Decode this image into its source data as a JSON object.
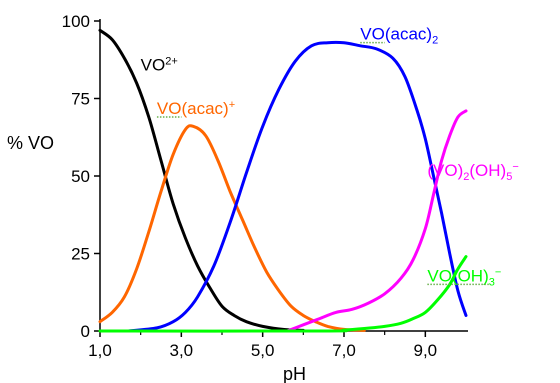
{
  "chart_data": {
    "type": "line",
    "xlabel": "pH",
    "ylabel": "% VO",
    "xlim": [
      1.0,
      10.0
    ],
    "ylim": [
      0,
      100
    ],
    "x_ticks": [
      {
        "value": 1.0,
        "label": "1,0"
      },
      {
        "value": 3.0,
        "label": "3,0"
      },
      {
        "value": 5.0,
        "label": "5,0"
      },
      {
        "value": 7.0,
        "label": "7,0"
      },
      {
        "value": 9.0,
        "label": "9,0"
      }
    ],
    "y_ticks": [
      {
        "value": 0,
        "label": "0"
      },
      {
        "value": 25,
        "label": "25"
      },
      {
        "value": 50,
        "label": "50"
      },
      {
        "value": 75,
        "label": "75"
      },
      {
        "value": 100,
        "label": "100"
      }
    ],
    "series": [
      {
        "name": "VO2+",
        "label_main": "VO",
        "label_sup": "2+",
        "label_anchor": {
          "x": 2.0,
          "y": 84
        },
        "label_underline": "",
        "color": "#000000",
        "points": [
          [
            1.0,
            97
          ],
          [
            1.3,
            94
          ],
          [
            1.6,
            88
          ],
          [
            1.9,
            80
          ],
          [
            2.2,
            69
          ],
          [
            2.5,
            55
          ],
          [
            2.8,
            41
          ],
          [
            3.1,
            30
          ],
          [
            3.4,
            21
          ],
          [
            3.7,
            14
          ],
          [
            4.0,
            8
          ],
          [
            4.3,
            5
          ],
          [
            4.6,
            3
          ],
          [
            5.0,
            1.5
          ],
          [
            5.5,
            0.5
          ],
          [
            6.0,
            0.2
          ]
        ]
      },
      {
        "name": "VO(acac)+",
        "label_main": "VO(acac)",
        "label_sup": "+",
        "label_underline": "VO",
        "label_anchor": {
          "x": 2.4,
          "y": 70
        },
        "color": "#ff6600",
        "points": [
          [
            1.0,
            3
          ],
          [
            1.3,
            6
          ],
          [
            1.6,
            11
          ],
          [
            1.9,
            20
          ],
          [
            2.2,
            32
          ],
          [
            2.5,
            45
          ],
          [
            2.8,
            57
          ],
          [
            3.1,
            65
          ],
          [
            3.3,
            66
          ],
          [
            3.6,
            63
          ],
          [
            3.9,
            55
          ],
          [
            4.2,
            45
          ],
          [
            4.5,
            36
          ],
          [
            4.8,
            27
          ],
          [
            5.1,
            19
          ],
          [
            5.4,
            13
          ],
          [
            5.7,
            8
          ],
          [
            6.0,
            5
          ],
          [
            6.3,
            3
          ],
          [
            6.6,
            1.5
          ],
          [
            7.0,
            0.5
          ],
          [
            7.5,
            0.2
          ]
        ]
      },
      {
        "name": "VO(acac)2",
        "label_main": "VO(acac)",
        "label_sub": "2",
        "label_underline": "VO",
        "label_anchor": {
          "x": 7.4,
          "y": 94
        },
        "color": "#0000ff",
        "points": [
          [
            1.7,
            0
          ],
          [
            2.4,
            1
          ],
          [
            2.8,
            3
          ],
          [
            3.1,
            6
          ],
          [
            3.4,
            11
          ],
          [
            3.8,
            21
          ],
          [
            4.2,
            35
          ],
          [
            4.6,
            51
          ],
          [
            5.0,
            66
          ],
          [
            5.4,
            78
          ],
          [
            5.8,
            87
          ],
          [
            6.2,
            92
          ],
          [
            6.6,
            93
          ],
          [
            7.0,
            93
          ],
          [
            7.4,
            92
          ],
          [
            7.8,
            91
          ],
          [
            8.2,
            88
          ],
          [
            8.5,
            82
          ],
          [
            8.8,
            71
          ],
          [
            9.0,
            62
          ],
          [
            9.2,
            50
          ],
          [
            9.4,
            38
          ],
          [
            9.6,
            25
          ],
          [
            9.8,
            13
          ],
          [
            10.0,
            5
          ]
        ]
      },
      {
        "name": "(VO)2(OH)5-",
        "label_main": "(VO)",
        "label_sub": "2",
        "label_mid": "(OH)",
        "label_sub2": "5",
        "label_sup": "−",
        "label_underline": "",
        "label_anchor": {
          "x": 9.05,
          "y": 50
        },
        "color": "#ff00ff",
        "points": [
          [
            5.6,
            0
          ],
          [
            6.0,
            2
          ],
          [
            6.4,
            4
          ],
          [
            6.8,
            6
          ],
          [
            7.2,
            7
          ],
          [
            7.6,
            9
          ],
          [
            8.0,
            12
          ],
          [
            8.4,
            17
          ],
          [
            8.7,
            23
          ],
          [
            9.0,
            33
          ],
          [
            9.2,
            44
          ],
          [
            9.4,
            55
          ],
          [
            9.6,
            63
          ],
          [
            9.8,
            69
          ],
          [
            10.0,
            71
          ]
        ]
      },
      {
        "name": "VO(OH)3-",
        "label_main": "VO(OH)",
        "label_sub": "3",
        "label_sup": "−",
        "label_underline": "VO(OH)",
        "label_anchor": {
          "x": 9.05,
          "y": 16
        },
        "color": "#00ff00",
        "points": [
          [
            1.0,
            0
          ],
          [
            6.5,
            0
          ],
          [
            7.0,
            0.3
          ],
          [
            7.5,
            0.8
          ],
          [
            8.0,
            1.5
          ],
          [
            8.4,
            2.5
          ],
          [
            8.7,
            4
          ],
          [
            9.0,
            6
          ],
          [
            9.3,
            10
          ],
          [
            9.6,
            15
          ],
          [
            9.8,
            20
          ],
          [
            10.0,
            24
          ]
        ]
      }
    ]
  }
}
